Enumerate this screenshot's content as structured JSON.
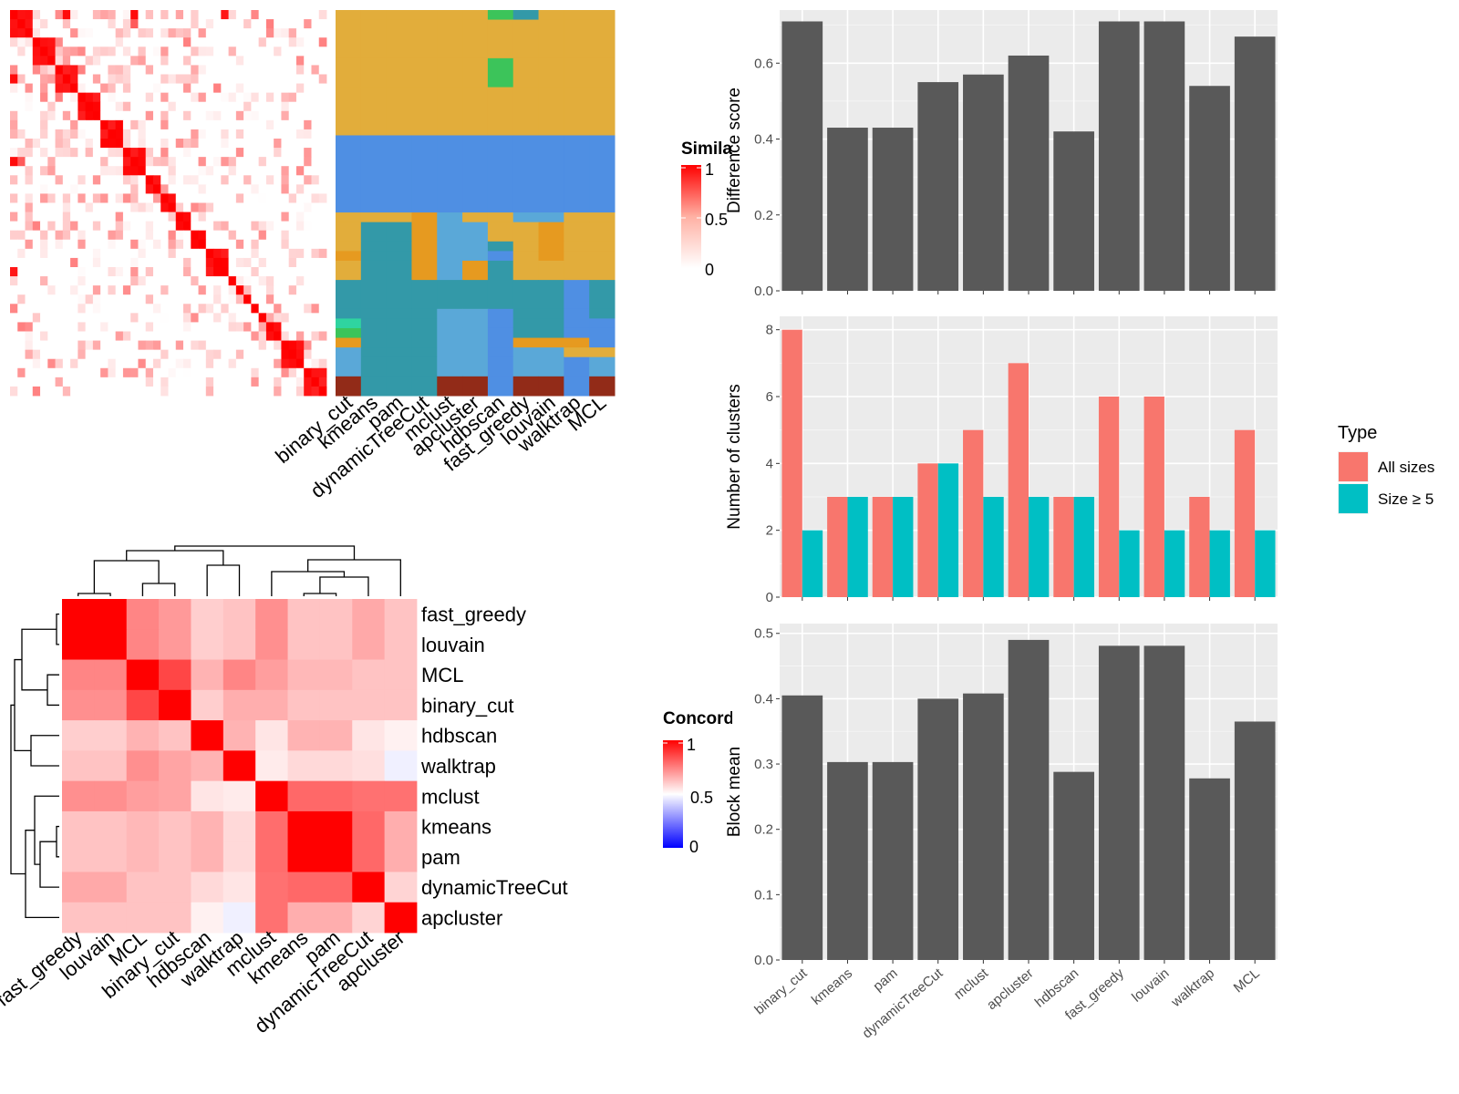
{
  "similarity_legend": {
    "title": "Similarity",
    "ticks": [
      "1",
      "0.5",
      "0"
    ]
  },
  "concordance_legend": {
    "title": "Concordance",
    "ticks": [
      "1",
      "0.5",
      "0"
    ]
  },
  "colors": {
    "heat_high": "#ff0000",
    "heat_low": "#ffffff",
    "conc_low": "#0000ff",
    "bar_dark": "#595959",
    "all_sizes": "#f8766d",
    "size_ge5": "#00bfc4",
    "panel_bg": "#ebebeb"
  },
  "cluster_palette": {
    "A": "#e2ad3b",
    "B": "#4f8fe3",
    "C": "#3399a8",
    "D": "#5aa8d8",
    "E": "#e69a20",
    "F": "#922b18",
    "G": "#3cc45a",
    "H": "#2fd4a0"
  },
  "chart_data": [
    {
      "type": "heatmap",
      "title": "",
      "legend_title": "Similarity",
      "scale": [
        0,
        1
      ],
      "rows": 42,
      "note_values": "cell-to-cell similarity (visual estimate)",
      "block_sizes": [
        3,
        3,
        3,
        3,
        3,
        3,
        2,
        2,
        2,
        2,
        3,
        1,
        1,
        1,
        1,
        1,
        2,
        3,
        2
      ]
    },
    {
      "type": "heatmap",
      "title": "",
      "columns": [
        "binary_cut",
        "kmeans",
        "pam",
        "dynamicTreeCut",
        "mclust",
        "apcluster",
        "hdbscan",
        "fast_greedy",
        "louvain",
        "walktrap",
        "MCL"
      ],
      "row_segments": [
        {
          "rows": 1,
          "labels": [
            "A",
            "A",
            "A",
            "A",
            "A",
            "A",
            "G",
            "C",
            "A",
            "A",
            "A"
          ]
        },
        {
          "rows": 4,
          "labels": [
            "A",
            "A",
            "A",
            "A",
            "A",
            "A",
            "A",
            "A",
            "A",
            "A",
            "A"
          ]
        },
        {
          "rows": 3,
          "labels": [
            "A",
            "A",
            "A",
            "A",
            "A",
            "A",
            "G",
            "A",
            "A",
            "A",
            "A"
          ]
        },
        {
          "rows": 5,
          "labels": [
            "A",
            "A",
            "A",
            "A",
            "A",
            "A",
            "A",
            "A",
            "A",
            "A",
            "A"
          ]
        },
        {
          "rows": 8,
          "labels": [
            "B",
            "B",
            "B",
            "B",
            "B",
            "B",
            "B",
            "B",
            "B",
            "B",
            "B"
          ]
        },
        {
          "rows": 1,
          "labels": [
            "A",
            "A",
            "A",
            "E",
            "D",
            "A",
            "A",
            "D",
            "D",
            "A",
            "A"
          ]
        },
        {
          "rows": 2,
          "labels": [
            "A",
            "C",
            "C",
            "E",
            "D",
            "D",
            "A",
            "A",
            "E",
            "A",
            "A"
          ]
        },
        {
          "rows": 1,
          "labels": [
            "A",
            "C",
            "C",
            "E",
            "D",
            "D",
            "C",
            "A",
            "E",
            "A",
            "A"
          ]
        },
        {
          "rows": 1,
          "labels": [
            "E",
            "C",
            "C",
            "E",
            "D",
            "D",
            "B",
            "A",
            "E",
            "A",
            "A"
          ]
        },
        {
          "rows": 2,
          "labels": [
            "A",
            "C",
            "C",
            "E",
            "D",
            "E",
            "C",
            "A",
            "A",
            "A",
            "A"
          ]
        },
        {
          "rows": 3,
          "labels": [
            "C",
            "C",
            "C",
            "C",
            "C",
            "C",
            "C",
            "C",
            "C",
            "B",
            "C"
          ]
        },
        {
          "rows": 1,
          "labels": [
            "C",
            "C",
            "C",
            "C",
            "D",
            "D",
            "B",
            "C",
            "C",
            "B",
            "C"
          ]
        },
        {
          "rows": 1,
          "labels": [
            "H",
            "C",
            "C",
            "C",
            "D",
            "D",
            "B",
            "C",
            "C",
            "B",
            "B"
          ]
        },
        {
          "rows": 1,
          "labels": [
            "G",
            "C",
            "C",
            "C",
            "D",
            "D",
            "B",
            "C",
            "C",
            "B",
            "B"
          ]
        },
        {
          "rows": 1,
          "labels": [
            "E",
            "C",
            "C",
            "C",
            "D",
            "D",
            "B",
            "E",
            "E",
            "E",
            "B"
          ]
        },
        {
          "rows": 1,
          "labels": [
            "D",
            "C",
            "C",
            "C",
            "D",
            "D",
            "B",
            "D",
            "D",
            "A",
            "A"
          ]
        },
        {
          "rows": 2,
          "labels": [
            "D",
            "C",
            "C",
            "C",
            "D",
            "D",
            "B",
            "D",
            "D",
            "B",
            "D"
          ]
        },
        {
          "rows": 2,
          "labels": [
            "F",
            "C",
            "C",
            "C",
            "F",
            "F",
            "B",
            "F",
            "F",
            "B",
            "F"
          ]
        }
      ]
    },
    {
      "type": "heatmap",
      "title": "",
      "legend_title": "Concordance",
      "scale": [
        0,
        1
      ],
      "labels": [
        "fast_greedy",
        "louvain",
        "MCL",
        "binary_cut",
        "hdbscan",
        "walktrap",
        "mclust",
        "kmeans",
        "pam",
        "dynamicTreeCut",
        "apcluster"
      ],
      "values": [
        [
          1.0,
          1.0,
          0.72,
          0.68,
          0.58,
          0.6,
          0.7,
          0.6,
          0.6,
          0.65,
          0.6
        ],
        [
          1.0,
          1.0,
          0.72,
          0.68,
          0.58,
          0.6,
          0.7,
          0.6,
          0.6,
          0.65,
          0.6
        ],
        [
          0.72,
          0.72,
          1.0,
          0.85,
          0.63,
          0.72,
          0.67,
          0.62,
          0.62,
          0.6,
          0.6
        ],
        [
          0.7,
          0.7,
          0.85,
          1.0,
          0.58,
          0.64,
          0.64,
          0.6,
          0.6,
          0.6,
          0.6
        ],
        [
          0.58,
          0.58,
          0.63,
          0.6,
          1.0,
          0.63,
          0.54,
          0.63,
          0.63,
          0.54,
          0.52
        ],
        [
          0.6,
          0.6,
          0.7,
          0.66,
          0.63,
          1.0,
          0.53,
          0.56,
          0.56,
          0.55,
          0.47
        ],
        [
          0.7,
          0.7,
          0.67,
          0.66,
          0.54,
          0.53,
          1.0,
          0.78,
          0.78,
          0.76,
          0.76
        ],
        [
          0.6,
          0.6,
          0.62,
          0.6,
          0.63,
          0.56,
          0.77,
          1.0,
          1.0,
          0.78,
          0.64
        ],
        [
          0.6,
          0.6,
          0.62,
          0.6,
          0.63,
          0.56,
          0.77,
          1.0,
          1.0,
          0.78,
          0.64
        ],
        [
          0.65,
          0.65,
          0.6,
          0.6,
          0.56,
          0.54,
          0.76,
          0.78,
          0.78,
          1.0,
          0.57
        ],
        [
          0.6,
          0.6,
          0.6,
          0.6,
          0.52,
          0.47,
          0.76,
          0.64,
          0.64,
          0.57,
          1.0
        ]
      ],
      "dendrogram": "hierarchical clustering of rows and columns"
    },
    {
      "type": "bar",
      "title": "",
      "categories": [
        "binary_cut",
        "kmeans",
        "pam",
        "dynamicTreeCut",
        "mclust",
        "apcluster",
        "hdbscan",
        "fast_greedy",
        "louvain",
        "walktrap",
        "MCL"
      ],
      "values": [
        0.71,
        0.43,
        0.43,
        0.55,
        0.57,
        0.62,
        0.42,
        0.71,
        0.71,
        0.54,
        0.67
      ],
      "xlabel": "",
      "ylabel": "Difference score",
      "ylim": [
        0,
        0.74
      ],
      "yticks": [
        "0.0",
        "0.2",
        "0.4",
        "0.6"
      ]
    },
    {
      "type": "bar",
      "title": "",
      "categories": [
        "binary_cut",
        "kmeans",
        "pam",
        "dynamicTreeCut",
        "mclust",
        "apcluster",
        "hdbscan",
        "fast_greedy",
        "louvain",
        "walktrap",
        "MCL"
      ],
      "series": [
        {
          "name": "All sizes",
          "values": [
            8,
            3,
            3,
            4,
            5,
            7,
            3,
            6,
            6,
            3,
            5
          ]
        },
        {
          "name": "Size ≥ 5",
          "values": [
            2,
            3,
            3,
            4,
            3,
            3,
            3,
            2,
            2,
            2,
            2
          ]
        }
      ],
      "xlabel": "",
      "ylabel": "Number of clusters",
      "ylim": [
        0,
        8.4
      ],
      "yticks": [
        "0",
        "2",
        "4",
        "6",
        "8"
      ],
      "legend_title": "Type",
      "legend_position": "right"
    },
    {
      "type": "bar",
      "title": "",
      "categories": [
        "binary_cut",
        "kmeans",
        "pam",
        "dynamicTreeCut",
        "mclust",
        "apcluster",
        "hdbscan",
        "fast_greedy",
        "louvain",
        "walktrap",
        "MCL"
      ],
      "values": [
        0.405,
        0.303,
        0.303,
        0.4,
        0.408,
        0.49,
        0.288,
        0.481,
        0.481,
        0.278,
        0.365
      ],
      "xlabel": "",
      "ylabel": "Block mean",
      "ylim": [
        0,
        0.515
      ],
      "yticks": [
        "0.0",
        "0.1",
        "0.2",
        "0.3",
        "0.4",
        "0.5"
      ]
    }
  ]
}
